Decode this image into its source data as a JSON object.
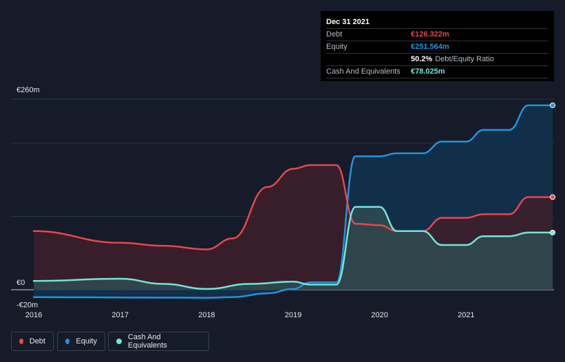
{
  "tooltip": {
    "date": "Dec 31 2021",
    "rows": [
      {
        "label": "Debt",
        "value": "€126.322m",
        "color": "#e8464e"
      },
      {
        "label": "Equity",
        "value": "€251.564m",
        "color": "#2394df"
      },
      {
        "label": "",
        "value": "50.2%",
        "sub": "Debt/Equity Ratio",
        "color": "#ffffff"
      },
      {
        "label": "Cash And Equivalents",
        "value": "€78.025m",
        "color": "#71e7d6"
      }
    ]
  },
  "legend": [
    {
      "label": "Debt",
      "color": "#e8464e"
    },
    {
      "label": "Equity",
      "color": "#2394df"
    },
    {
      "label": "Cash And Equivalents",
      "color": "#71e7d6"
    }
  ],
  "chart_data": {
    "type": "area",
    "title": "",
    "xlabel": "",
    "ylabel": "",
    "ylim": [
      -20,
      260
    ],
    "xlim": [
      2016,
      2022
    ],
    "y_tick_labels": [
      {
        "value": 260,
        "label": "€260m"
      },
      {
        "value": 0,
        "label": "€0"
      },
      {
        "value": -20,
        "label": "-€20m"
      }
    ],
    "gridlines": [
      260,
      200,
      100,
      0
    ],
    "x_ticks": [
      {
        "value": 2016,
        "label": "2016"
      },
      {
        "value": 2017,
        "label": "2017"
      },
      {
        "value": 2018,
        "label": "2018"
      },
      {
        "value": 2019,
        "label": "2019"
      },
      {
        "value": 2020,
        "label": "2020"
      },
      {
        "value": 2021,
        "label": "2021"
      }
    ],
    "series": [
      {
        "name": "Equity",
        "color": "#2394df",
        "fill": "#11334f",
        "points": [
          [
            2016,
            -10
          ],
          [
            2017,
            -10.5
          ],
          [
            2018,
            -11
          ],
          [
            2018.3,
            -10
          ],
          [
            2018.7,
            -5
          ],
          [
            2019,
            1
          ],
          [
            2019.2,
            10
          ],
          [
            2019.5,
            10
          ],
          [
            2019.72,
            182
          ],
          [
            2020,
            182
          ],
          [
            2020.2,
            186
          ],
          [
            2020.5,
            186
          ],
          [
            2020.72,
            202
          ],
          [
            2021,
            202
          ],
          [
            2021.2,
            218
          ],
          [
            2021.5,
            218
          ],
          [
            2021.72,
            251.564
          ],
          [
            2022,
            251.564
          ]
        ]
      },
      {
        "name": "Debt",
        "color": "#e8464e",
        "fill": "#3e1f2a",
        "points": [
          [
            2016,
            80
          ],
          [
            2017,
            64
          ],
          [
            2017.5,
            60
          ],
          [
            2018,
            55
          ],
          [
            2018.3,
            70
          ],
          [
            2018.7,
            140
          ],
          [
            2019,
            165
          ],
          [
            2019.2,
            170
          ],
          [
            2019.5,
            170
          ],
          [
            2019.72,
            90
          ],
          [
            2020,
            88
          ],
          [
            2020.2,
            80
          ],
          [
            2020.5,
            80
          ],
          [
            2020.72,
            98
          ],
          [
            2021,
            98
          ],
          [
            2021.2,
            103
          ],
          [
            2021.5,
            103
          ],
          [
            2021.72,
            126.322
          ],
          [
            2022,
            126.322
          ]
        ]
      },
      {
        "name": "Cash And Equivalents",
        "color": "#71e7d6",
        "fill": "#2f4b50",
        "points": [
          [
            2016,
            12
          ],
          [
            2017,
            15
          ],
          [
            2017.5,
            8
          ],
          [
            2018,
            1
          ],
          [
            2018.5,
            8
          ],
          [
            2019,
            11
          ],
          [
            2019.2,
            7
          ],
          [
            2019.5,
            7
          ],
          [
            2019.72,
            113
          ],
          [
            2020,
            113
          ],
          [
            2020.2,
            80
          ],
          [
            2020.5,
            80
          ],
          [
            2020.72,
            61
          ],
          [
            2021,
            61
          ],
          [
            2021.2,
            73
          ],
          [
            2021.5,
            73
          ],
          [
            2021.72,
            78.025
          ],
          [
            2022,
            78.025
          ]
        ]
      }
    ]
  }
}
